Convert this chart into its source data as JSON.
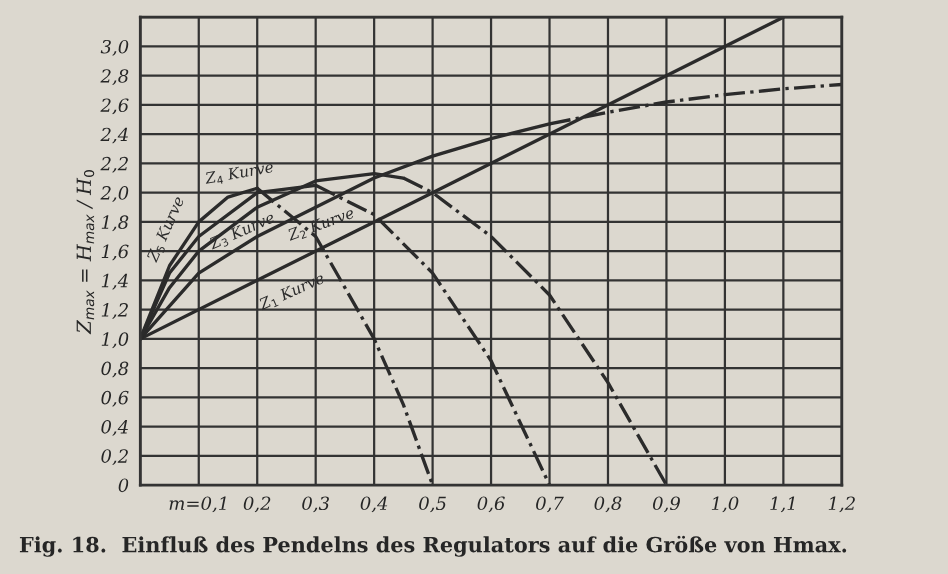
{
  "chart_data": {
    "type": "line",
    "ylabel": "Z$_{max}$ = H$_{max}$ / H$_{0}$",
    "annotations": [
      "Fig. 18.  Einfluß des Pendelns des Regulators auf die Größe von Hmax."
    ],
    "xlim": [
      0,
      1.2
    ],
    "ylim": [
      0,
      3.2
    ],
    "xticks": [
      {
        "value": 0,
        "label": null
      },
      {
        "value": 0.1,
        "label": "m=0,1"
      },
      {
        "value": 0.2,
        "label": "0,2"
      },
      {
        "value": 0.3,
        "label": "0,3"
      },
      {
        "value": 0.4,
        "label": "0,4"
      },
      {
        "value": 0.5,
        "label": "0,5"
      },
      {
        "value": 0.6,
        "label": "0,6"
      },
      {
        "value": 0.7,
        "label": "0,7"
      },
      {
        "value": 0.8,
        "label": "0,8"
      },
      {
        "value": 0.9,
        "label": "0,9"
      },
      {
        "value": 1.0,
        "label": "1,0"
      },
      {
        "value": 1.1,
        "label": "1,1"
      },
      {
        "value": 1.2,
        "label": "1,2"
      }
    ],
    "yticks": [
      0,
      {
        "value": 0.2,
        "label": "0,2"
      },
      {
        "value": 0.4,
        "label": "0,4"
      },
      {
        "value": 0.6,
        "label": "0,6"
      },
      {
        "value": 0.8,
        "label": "0,8"
      },
      {
        "value": 1.0,
        "label": "1,0"
      },
      {
        "value": 1.2,
        "label": "1,2"
      },
      {
        "value": 1.4,
        "label": "1,4"
      },
      {
        "value": 1.6,
        "label": "1,6"
      },
      {
        "value": 1.8,
        "label": "1,8"
      },
      {
        "value": 2.0,
        "label": "2,0"
      },
      {
        "value": 2.2,
        "label": "2,2"
      },
      {
        "value": 2.4,
        "label": "2,4"
      },
      {
        "value": 2.6,
        "label": "2,6"
      },
      {
        "value": 2.8,
        "label": "2,8"
      },
      {
        "value": 3.0,
        "label": "3,0"
      },
      {
        "value": 3.2,
        "label": null
      }
    ],
    "grid": true,
    "legend": false,
    "series": [
      {
        "name": "Z$_{1}$ Kurve",
        "color": "#2b2b2b",
        "line_style": "solid",
        "x": [
          0,
          0.4,
          1.1
        ],
        "values": [
          1.0,
          1.8,
          3.2
        ]
      },
      {
        "name": "Z$_{2}$ Kurve",
        "color": "#2b2b2b",
        "line_style": "solid",
        "x": [
          0,
          0.1,
          0.2,
          0.3,
          0.4,
          0.5,
          0.6,
          0.7
        ],
        "values": [
          1.0,
          1.45,
          1.7,
          1.9,
          2.1,
          2.25,
          2.37,
          2.47
        ]
      },
      {
        "color": "#2b2b2b",
        "line_style": "dashdot",
        "x": [
          0.7,
          0.8,
          0.9,
          1.0,
          1.1,
          1.2
        ],
        "values": [
          2.47,
          2.55,
          2.62,
          2.67,
          2.71,
          2.74
        ]
      },
      {
        "name": "Z$_{3}$ Kurve",
        "color": "#2b2b2b",
        "line_style": "solid",
        "x": [
          0,
          0.05,
          0.1,
          0.2,
          0.3,
          0.4,
          0.45
        ],
        "values": [
          1.0,
          1.35,
          1.6,
          1.9,
          2.08,
          2.13,
          2.1
        ]
      },
      {
        "color": "#2b2b2b",
        "line_style": "dashdot",
        "x": [
          0.45,
          0.5,
          0.6,
          0.7,
          0.8,
          0.9
        ],
        "values": [
          2.1,
          2.0,
          1.7,
          1.3,
          0.7,
          0
        ]
      },
      {
        "name": "Z$_{4}$ Kurve",
        "color": "#2b2b2b",
        "line_style": "solid",
        "x": [
          0,
          0.05,
          0.1,
          0.2,
          0.3
        ],
        "values": [
          1.0,
          1.45,
          1.7,
          2.0,
          2.05
        ]
      },
      {
        "color": "#2b2b2b",
        "line_style": "dashdot",
        "x": [
          0.3,
          0.4,
          0.5,
          0.6,
          0.7
        ],
        "values": [
          2.05,
          1.85,
          1.45,
          0.85,
          0
        ]
      },
      {
        "name": "Z$_{5}$ Kurve",
        "color": "#2b2b2b",
        "line_style": "solid",
        "x": [
          0,
          0.05,
          0.1,
          0.15,
          0.2
        ],
        "values": [
          1.0,
          1.5,
          1.8,
          1.97,
          2.03
        ]
      },
      {
        "color": "#2b2b2b",
        "line_style": "dashdot",
        "x": [
          0.2,
          0.3,
          0.4,
          0.45,
          0.5
        ],
        "values": [
          2.03,
          1.7,
          1.0,
          0.55,
          0
        ]
      }
    ]
  }
}
